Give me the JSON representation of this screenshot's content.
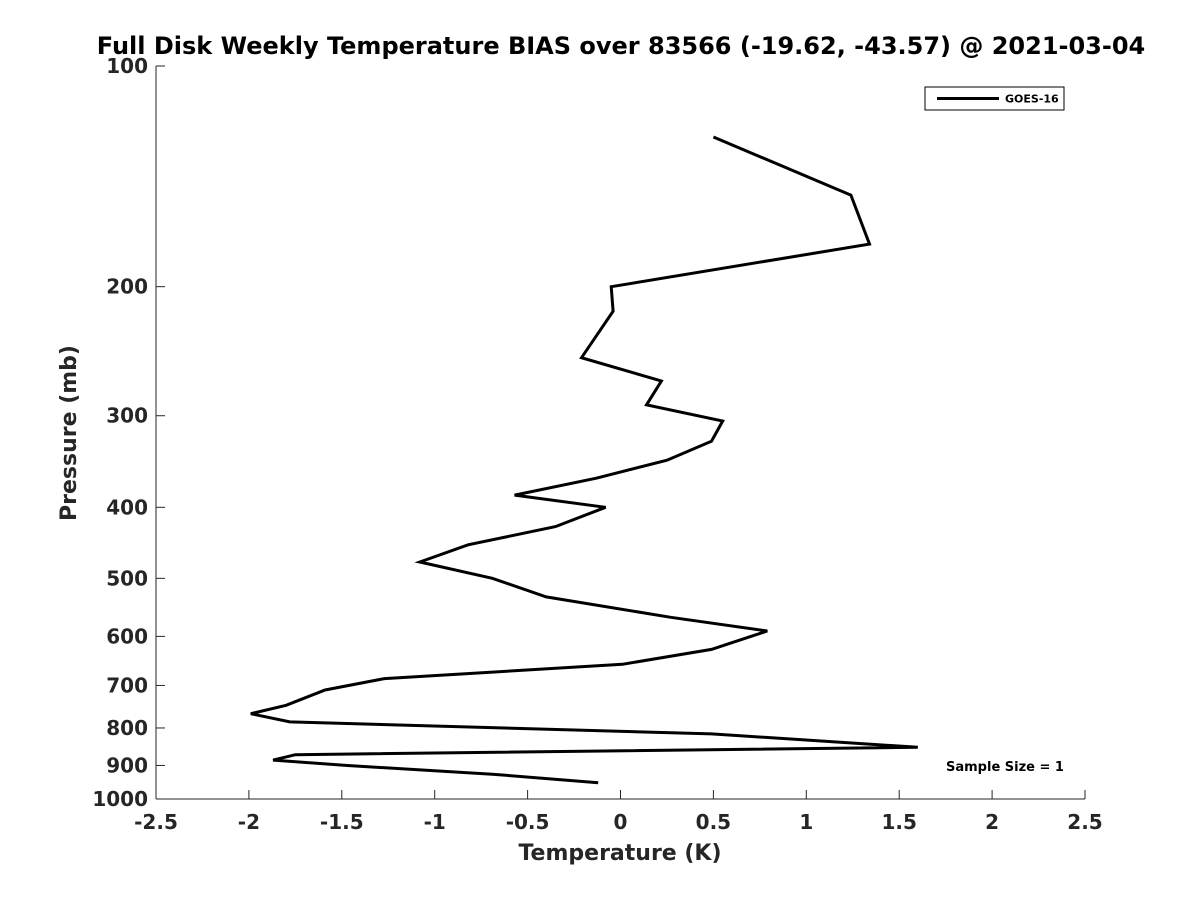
{
  "chart_data": {
    "type": "line",
    "title": "Full Disk Weekly Temperature BIAS over 83566 (-19.62, -43.57) @ 2021-03-04",
    "xlabel": "Temperature (K)",
    "ylabel": "Pressure (mb)",
    "xlim": [
      -2.5,
      2.5
    ],
    "ylim": [
      100,
      1000
    ],
    "y_scale": "log",
    "y_reversed": true,
    "x_ticks": [
      -2.5,
      -2,
      -1.5,
      -1,
      -0.5,
      0,
      0.5,
      1,
      1.5,
      2,
      2.5
    ],
    "x_tick_labels": [
      "-2.5",
      "-2",
      "-1.5",
      "-1",
      "-0.5",
      "0",
      "0.5",
      "1",
      "1.5",
      "2",
      "2.5"
    ],
    "y_ticks": [
      100,
      200,
      300,
      400,
      500,
      600,
      700,
      800,
      900,
      1000
    ],
    "y_tick_labels": [
      "100",
      "200",
      "300",
      "400",
      "500",
      "600",
      "700",
      "800",
      "900",
      "1000"
    ],
    "grid": false,
    "legend_position": "top-right",
    "annotation": "Sample Size = 1",
    "line_color": "#000000",
    "series": [
      {
        "name": "GOES-16",
        "x": [
          0.5,
          1.24,
          1.34,
          -0.05,
          -0.04,
          -0.21,
          0.22,
          0.14,
          0.55,
          0.49,
          0.25,
          -0.13,
          -0.57,
          -0.08,
          -0.35,
          -0.82,
          -1.08,
          -0.69,
          -0.4,
          0.27,
          0.79,
          0.49,
          0.01,
          -1.27,
          -1.59,
          -1.8,
          -1.99,
          -1.78,
          0.49,
          1.6,
          -1.75,
          -1.87,
          -1.47,
          -0.69,
          -0.12
        ],
        "y": [
          125,
          150,
          175,
          200,
          216,
          250,
          269,
          290,
          305,
          325,
          345,
          365,
          385,
          400,
          425,
          450,
          475,
          500,
          530,
          565,
          590,
          625,
          655,
          685,
          710,
          745,
          765,
          785,
          815,
          850,
          870,
          885,
          900,
          925,
          950
        ]
      }
    ]
  }
}
